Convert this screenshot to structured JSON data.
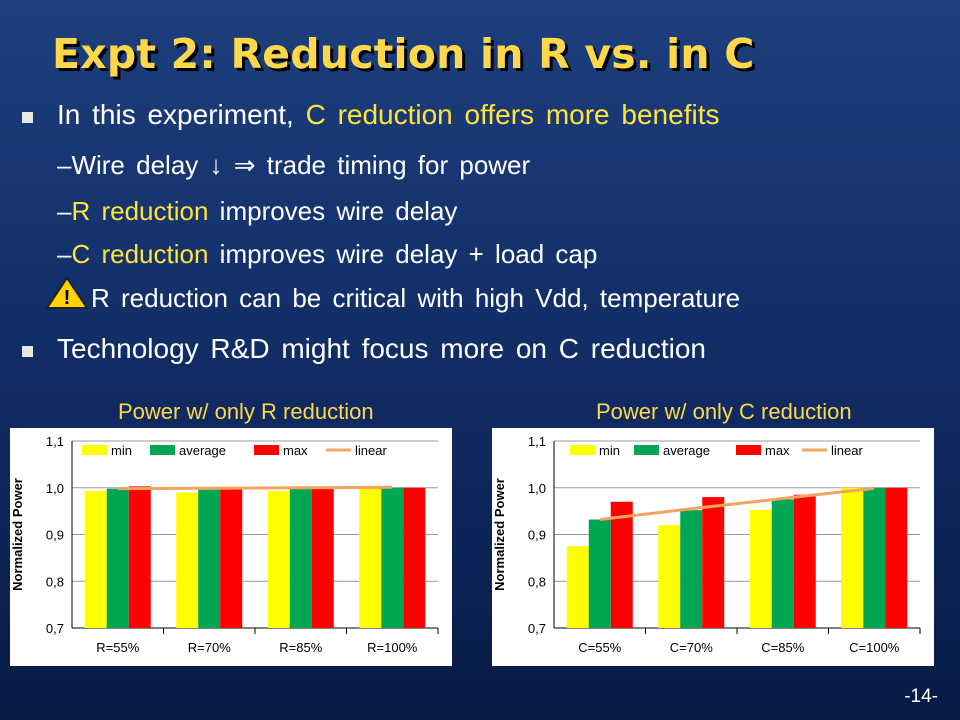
{
  "title": "Expt 2: Reduction in R vs. in C",
  "bullets": {
    "b1_a": "In this experiment,",
    "b1_b": "C reduction offers more benefits",
    "s1": "–Wire delay ↓ ⇒ trade timing for power",
    "s2_dash": "–",
    "s2_a": "R reduction",
    "s2_b": "improves wire delay",
    "s3_dash": "–",
    "s3_a": "C reduction",
    "s3_b": "improves wire delay + load cap",
    "warn_icon": "warning-triangle-icon",
    "warn_text": "R reduction can be critical with high Vdd, temperature",
    "b2": "Technology R&D might focus more on C reduction"
  },
  "page_number": "-14-",
  "colors": {
    "title": "#ffd84a",
    "min": "#ffff00",
    "average": "#00a651",
    "max": "#ff0000",
    "linear": "#f4a460"
  },
  "chart_data": [
    {
      "type": "bar",
      "title": "Power w/ only R reduction",
      "ylabel": "Normalized Power",
      "ylim": [
        0.7,
        1.1
      ],
      "yticks": [
        "0,7",
        "0,8",
        "0,9",
        "1,0",
        "1,1"
      ],
      "categories": [
        "R=55%",
        "R=70%",
        "R=85%",
        "R=100%"
      ],
      "legend": [
        "min",
        "average",
        "max",
        "linear"
      ],
      "series": [
        {
          "name": "min",
          "values": [
            0.993,
            0.99,
            0.993,
            1.0
          ]
        },
        {
          "name": "average",
          "values": [
            0.998,
            0.996,
            0.998,
            1.0
          ]
        },
        {
          "name": "max",
          "values": [
            1.003,
            1.001,
            1.002,
            1.0
          ]
        }
      ],
      "trend": {
        "name": "linear",
        "values": [
          0.998,
          0.999,
          1.0,
          1.001
        ]
      },
      "grid": "horizontal",
      "legend_position": "top"
    },
    {
      "type": "bar",
      "title": "Power w/ only C reduction",
      "ylabel": "Normalized Power",
      "ylim": [
        0.7,
        1.1
      ],
      "yticks": [
        "0,7",
        "0,8",
        "0,9",
        "1,0",
        "1,1"
      ],
      "categories": [
        "C=55%",
        "C=70%",
        "C=85%",
        "C=100%"
      ],
      "legend": [
        "min",
        "average",
        "max",
        "linear"
      ],
      "series": [
        {
          "name": "min",
          "values": [
            0.875,
            0.92,
            0.953,
            1.0
          ]
        },
        {
          "name": "average",
          "values": [
            0.932,
            0.952,
            0.975,
            1.0
          ]
        },
        {
          "name": "max",
          "values": [
            0.97,
            0.98,
            0.985,
            1.0
          ]
        }
      ],
      "trend": {
        "name": "linear",
        "values": [
          0.932,
          0.955,
          0.977,
          0.999
        ]
      },
      "grid": "horizontal",
      "legend_position": "top"
    }
  ]
}
